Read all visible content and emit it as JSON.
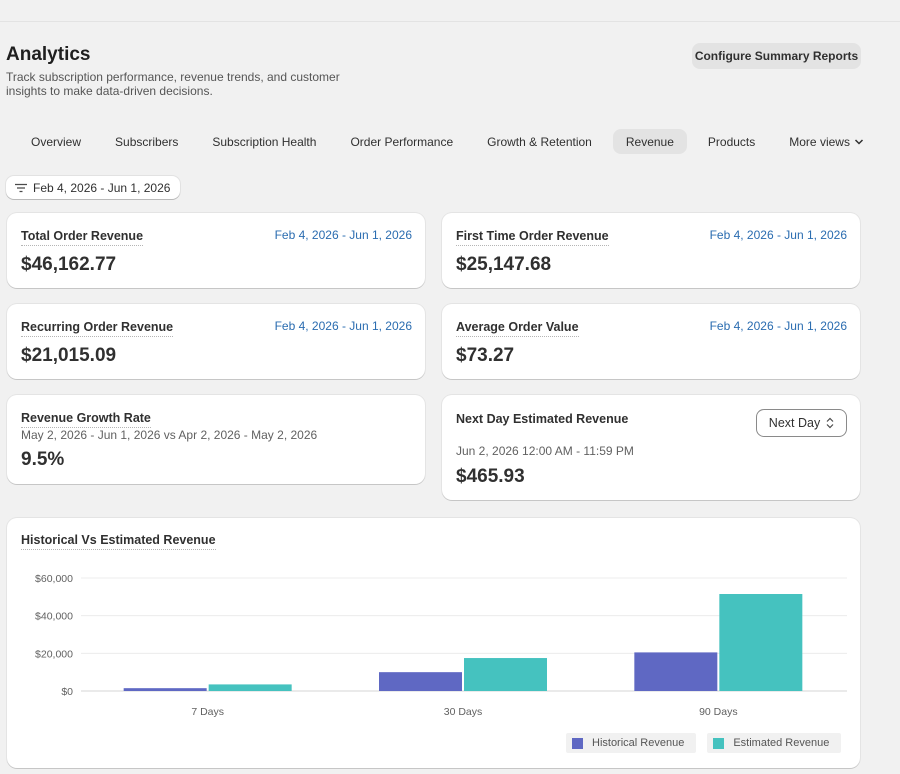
{
  "header": {
    "title": "Analytics",
    "subtitle": "Track subscription performance, revenue trends, and customer insights to make data-driven decisions.",
    "configure_label": "Configure Summary Reports"
  },
  "tabs": [
    {
      "label": "Overview",
      "active": false
    },
    {
      "label": "Subscribers",
      "active": false
    },
    {
      "label": "Subscription Health",
      "active": false
    },
    {
      "label": "Order Performance",
      "active": false
    },
    {
      "label": "Growth & Retention",
      "active": false
    },
    {
      "label": "Revenue",
      "active": true
    },
    {
      "label": "Products",
      "active": false
    },
    {
      "label": "More views",
      "active": false
    }
  ],
  "filter": {
    "date_range": "Feb 4, 2026 - Jun 1, 2026",
    "icon": "filter-icon"
  },
  "cards": {
    "total_order_revenue": {
      "label": "Total Order Revenue",
      "date": "Feb 4, 2026 - Jun 1, 2026",
      "value": "$46,162.77"
    },
    "first_time_order_revenue": {
      "label": "First Time Order Revenue",
      "date": "Feb 4, 2026 - Jun 1, 2026",
      "value": "$25,147.68"
    },
    "recurring_order_revenue": {
      "label": "Recurring Order Revenue",
      "date": "Feb 4, 2026 - Jun 1, 2026",
      "value": "$21,015.09"
    },
    "average_order_value": {
      "label": "Average Order Value",
      "date": "Feb 4, 2026 - Jun 1, 2026",
      "value": "$73.27"
    },
    "revenue_growth_rate": {
      "label": "Revenue Growth Rate",
      "comparison": "May 2, 2026 - Jun 1, 2026 vs Apr 2, 2026 - May 2, 2026",
      "value": "9.5%"
    },
    "next_day_estimated_revenue": {
      "label": "Next Day Estimated Revenue",
      "select_value": "Next Day",
      "period": "Jun 2, 2026 12:00 AM - 11:59 PM",
      "value": "$465.93"
    }
  },
  "colors": {
    "historical": "#5f68c3",
    "estimated": "#45c2bf",
    "link": "#2a6cb0"
  },
  "chart_data": {
    "type": "bar",
    "title": "Historical Vs Estimated Revenue",
    "categories": [
      "7 Days",
      "30 Days",
      "90 Days"
    ],
    "series": [
      {
        "name": "Historical Revenue",
        "values": [
          1500,
          10000,
          20500
        ]
      },
      {
        "name": "Estimated Revenue",
        "values": [
          3500,
          17500,
          51500
        ]
      }
    ],
    "ylim": [
      0,
      60000
    ],
    "yticks": [
      0,
      20000,
      40000,
      60000
    ],
    "ytick_labels": [
      "$0",
      "$20,000",
      "$40,000",
      "$60,000"
    ],
    "grid": true,
    "legend": "bottom-right"
  }
}
